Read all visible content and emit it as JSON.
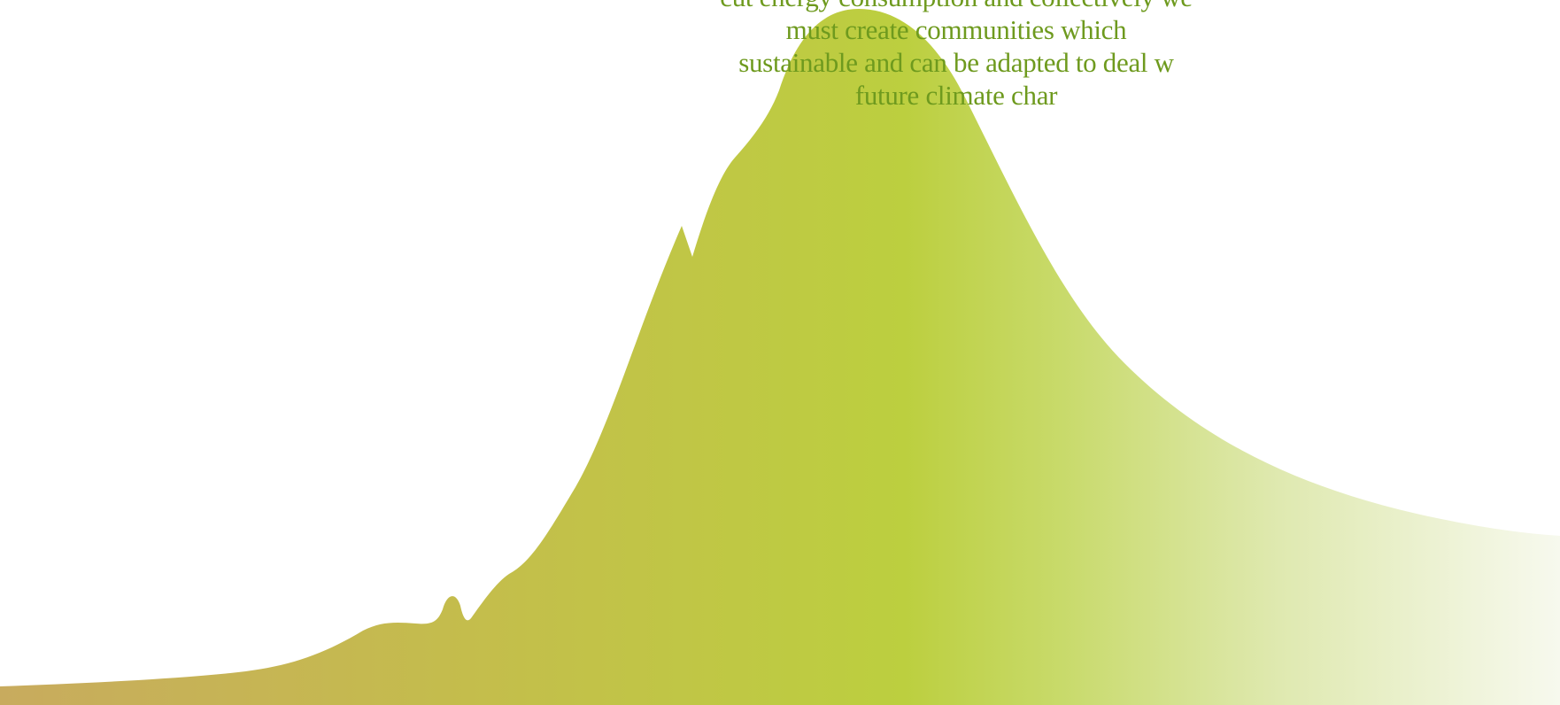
{
  "caption": {
    "lines": [
      "cut energy consumption and collectively we",
      "must create communities which",
      "sustainable and can be adapted to deal w",
      "future climate char"
    ]
  },
  "colors": {
    "caption_text": "#6e9a1e",
    "peak_fill_left": "#c8ab5e",
    "peak_fill_center": "#bccf3f",
    "peak_fill_right": "#f5f8e8",
    "background": "#ffffff"
  }
}
